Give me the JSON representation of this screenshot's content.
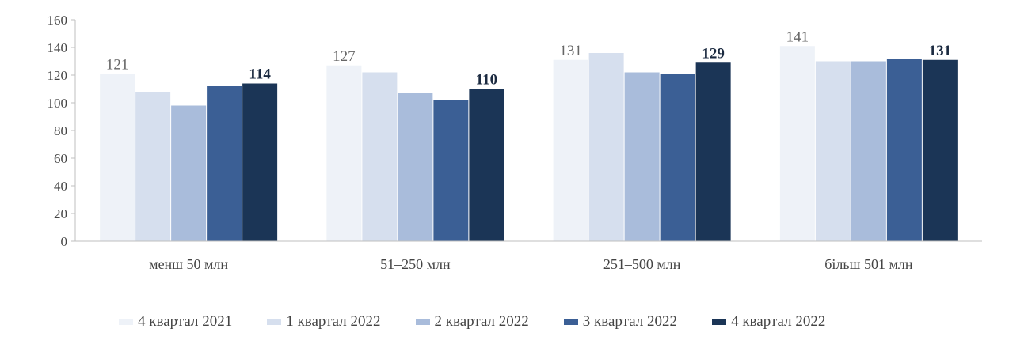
{
  "chart_data": {
    "type": "bar",
    "categories": [
      "менш 50 млн",
      "51–250 млн",
      "251–500 млн",
      "більш 501 млн"
    ],
    "ylim": [
      0,
      160
    ],
    "yticks": [
      0,
      20,
      40,
      60,
      80,
      100,
      120,
      140,
      160
    ],
    "grid": false,
    "legend_position": "bottom",
    "series": [
      {
        "name": "4 квартал 2021",
        "color": "#eef2f8",
        "values": [
          121,
          127,
          131,
          141
        ],
        "labels": [
          "121",
          "127",
          "131",
          "141"
        ]
      },
      {
        "name": "1 квартал 2022",
        "color": "#d6dfee",
        "values": [
          108,
          122,
          136,
          130
        ],
        "labels": [
          "",
          "",
          "",
          ""
        ]
      },
      {
        "name": "2 квартал 2022",
        "color": "#a9bcdb",
        "values": [
          98,
          107,
          122,
          130
        ],
        "labels": [
          "",
          "",
          "",
          ""
        ]
      },
      {
        "name": "3 квартал 2022",
        "color": "#3b5f95",
        "values": [
          112,
          102,
          121,
          132
        ],
        "labels": [
          "",
          "",
          "",
          ""
        ]
      },
      {
        "name": "4 квартал 2022",
        "color": "#1b3556",
        "values": [
          114,
          110,
          129,
          131
        ],
        "labels": [
          "114",
          "110",
          "129",
          "131"
        ]
      }
    ]
  }
}
